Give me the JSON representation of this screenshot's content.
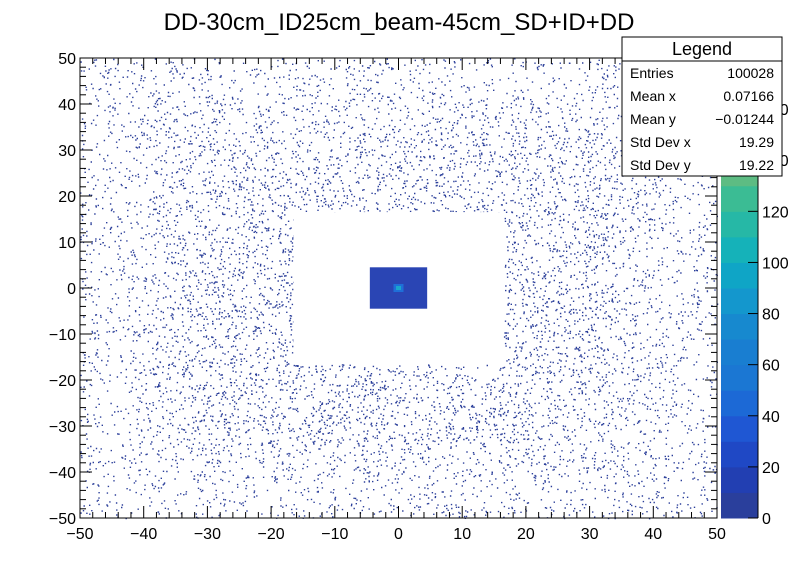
{
  "chart_data": {
    "type": "heatmap",
    "title": "DD-30cm_ID25cm_beam-45cm_SD+ID+DD",
    "xlabel": "",
    "ylabel": "",
    "xlim": [
      -50,
      50
    ],
    "ylim": [
      -50,
      50
    ],
    "x_ticks": [
      -50,
      -40,
      -30,
      -20,
      -10,
      0,
      10,
      20,
      30,
      40,
      50
    ],
    "y_ticks": [
      -50,
      -40,
      -30,
      -20,
      -10,
      0,
      10,
      20,
      30,
      40,
      50
    ],
    "x_tick_labels": [
      "−50",
      "−40",
      "−30",
      "−20",
      "−10",
      "0",
      "10",
      "20",
      "30",
      "40",
      "50"
    ],
    "y_tick_labels": [
      "−50",
      "−40",
      "−30",
      "−20",
      "−10",
      "0",
      "10",
      "20",
      "30",
      "40",
      "50"
    ],
    "colorbar": {
      "min": 0,
      "max": 180,
      "ticks": [
        0,
        20,
        40,
        60,
        80,
        100,
        120,
        140,
        160
      ],
      "tick_labels": [
        "0",
        "20",
        "40",
        "60",
        "80",
        "100",
        "120",
        "140",
        "160"
      ],
      "colors": [
        "#2a3f9c",
        "#223fb2",
        "#1f48c5",
        "#1f57d3",
        "#1c69d6",
        "#1b77d3",
        "#197ed1",
        "#1789cf",
        "#1497cd",
        "#0fa5c6",
        "#15b2b9",
        "#26b8a6",
        "#3bbc94",
        "#5dbc83",
        "#80bd70",
        "#a1bc63",
        "#c1b957",
        "#dab54d"
      ]
    },
    "regions": [
      {
        "name": "empty-gap",
        "x": [
          -16.5,
          16.5
        ],
        "y": [
          -16.5,
          16.5
        ],
        "counts": 0
      },
      {
        "name": "beam-spot",
        "x": [
          -4.5,
          4.5
        ],
        "y": [
          -4.5,
          4.5
        ],
        "counts": 12,
        "peak_at": [
          0,
          0
        ]
      }
    ],
    "legend": {
      "title": "Legend",
      "placement": "top-right",
      "rows": [
        {
          "label": "Entries",
          "value": "100028"
        },
        {
          "label": "Mean x",
          "value": "0.07166"
        },
        {
          "label": "Mean y",
          "value": "−0.01244"
        },
        {
          "label": "Std Dev x",
          "value": "19.29"
        },
        {
          "label": "Std Dev y",
          "value": "19.22"
        }
      ]
    }
  }
}
